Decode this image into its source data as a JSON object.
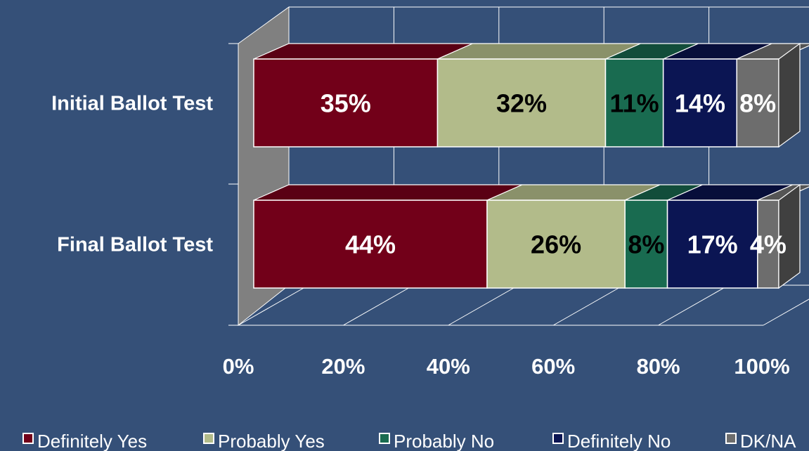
{
  "chart_data": {
    "type": "bar",
    "orientation": "horizontal",
    "stacked": "percent",
    "three_d": true,
    "categories": [
      "Initial Ballot Test",
      "Final Ballot Test"
    ],
    "series": [
      {
        "name": "Definitely Yes",
        "values": [
          35,
          44
        ],
        "color": "#720019",
        "top_color": "#5a0014",
        "label_color": "#ffffff"
      },
      {
        "name": "Probably Yes",
        "values": [
          32,
          26
        ],
        "color": "#b2bb8a",
        "top_color": "#8a916a",
        "label_color": "#000000"
      },
      {
        "name": "Probably No",
        "values": [
          11,
          8
        ],
        "color": "#196b50",
        "top_color": "#124d3a",
        "label_color": "#000000"
      },
      {
        "name": "Definitely No",
        "values": [
          14,
          17
        ],
        "color": "#0b1553",
        "top_color": "#070e3a",
        "label_color": "#ffffff"
      },
      {
        "name": "DK/NA",
        "values": [
          8,
          4
        ],
        "color": "#6d6d6d",
        "top_color": "#555555",
        "label_color": "#ffffff"
      }
    ],
    "data_labels": [
      [
        "35%",
        "32%",
        "11%",
        "14%",
        "8%"
      ],
      [
        "44%",
        "26%",
        "8%",
        "17%",
        "4%"
      ]
    ],
    "x_ticks": [
      "0%",
      "20%",
      "40%",
      "60%",
      "80%",
      "100%"
    ],
    "xlim": [
      0,
      100
    ],
    "grid": "vertical",
    "legend_position": "bottom",
    "title": "",
    "xlabel": "",
    "ylabel": "",
    "colors": {
      "background": "#355078",
      "wall": "#808080",
      "floor": "#355078",
      "grid": "#ffffff"
    }
  }
}
